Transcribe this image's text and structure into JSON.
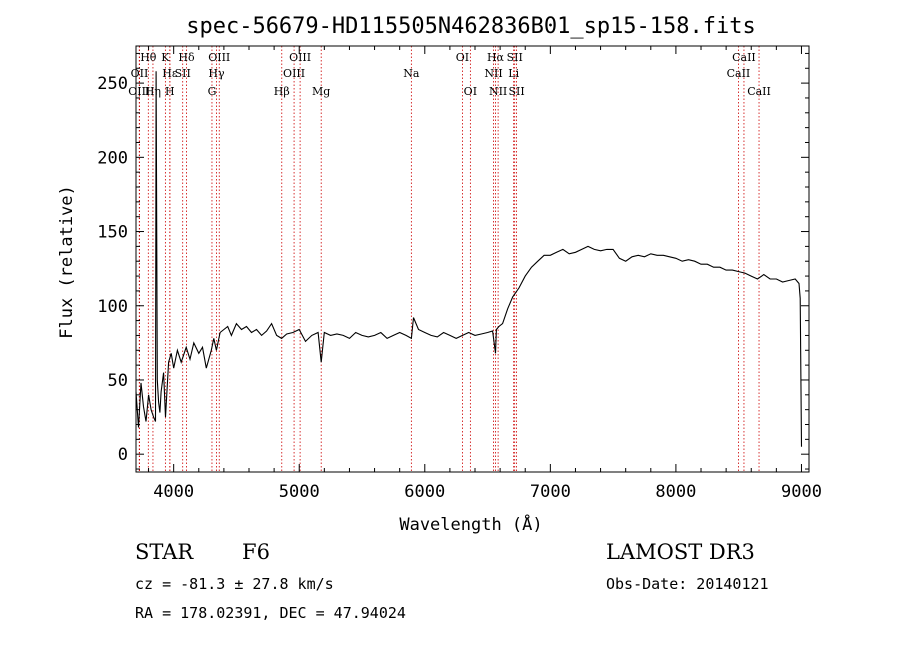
{
  "chart_data": {
    "type": "line",
    "title": "spec-56679-HD115505N462836B01_sp15-158.fits",
    "xlabel": "Wavelength (Å)",
    "ylabel": "Flux (relative)",
    "xlim": [
      3700,
      9060
    ],
    "ylim": [
      -12,
      275
    ],
    "xticks": [
      4000,
      5000,
      6000,
      7000,
      8000,
      9000
    ],
    "yticks": [
      0,
      50,
      100,
      150,
      200,
      250
    ],
    "series": [
      {
        "name": "spectrum",
        "x": [
          3700,
          3720,
          3740,
          3760,
          3780,
          3800,
          3820,
          3840,
          3855,
          3860,
          3870,
          3880,
          3890,
          3900,
          3920,
          3935,
          3960,
          3980,
          4000,
          4030,
          4060,
          4100,
          4130,
          4160,
          4200,
          4230,
          4260,
          4300,
          4320,
          4340,
          4370,
          4400,
          4430,
          4460,
          4500,
          4540,
          4580,
          4620,
          4660,
          4700,
          4740,
          4780,
          4820,
          4860,
          4900,
          4950,
          5000,
          5050,
          5100,
          5150,
          5175,
          5200,
          5250,
          5300,
          5350,
          5400,
          5450,
          5500,
          5550,
          5600,
          5650,
          5700,
          5750,
          5800,
          5850,
          5893,
          5910,
          5950,
          6000,
          6050,
          6100,
          6150,
          6200,
          6250,
          6300,
          6350,
          6400,
          6450,
          6500,
          6540,
          6563,
          6570,
          6590,
          6620,
          6660,
          6700,
          6750,
          6800,
          6850,
          6900,
          6950,
          7000,
          7050,
          7100,
          7150,
          7200,
          7250,
          7300,
          7350,
          7400,
          7450,
          7500,
          7550,
          7600,
          7650,
          7700,
          7750,
          7800,
          7850,
          7900,
          7950,
          8000,
          8050,
          8100,
          8150,
          8200,
          8250,
          8300,
          8350,
          8400,
          8450,
          8500,
          8550,
          8600,
          8650,
          8700,
          8750,
          8800,
          8850,
          8900,
          8950,
          8980,
          8990,
          9000
        ],
        "y": [
          42,
          18,
          48,
          32,
          22,
          40,
          30,
          25,
          22,
          258,
          50,
          35,
          28,
          42,
          55,
          25,
          62,
          68,
          58,
          70,
          62,
          72,
          64,
          75,
          68,
          72,
          58,
          70,
          78,
          70,
          82,
          84,
          86,
          80,
          88,
          84,
          86,
          82,
          84,
          80,
          83,
          88,
          80,
          78,
          81,
          82,
          84,
          76,
          80,
          82,
          62,
          82,
          80,
          81,
          80,
          78,
          82,
          80,
          79,
          80,
          82,
          78,
          80,
          82,
          80,
          78,
          92,
          84,
          82,
          80,
          79,
          82,
          80,
          78,
          80,
          82,
          80,
          81,
          82,
          83,
          68,
          84,
          86,
          88,
          98,
          106,
          112,
          120,
          126,
          130,
          134,
          134,
          136,
          138,
          135,
          136,
          138,
          140,
          138,
          137,
          138,
          138,
          132,
          130,
          133,
          134,
          133,
          135,
          134,
          134,
          133,
          132,
          130,
          131,
          130,
          128,
          128,
          126,
          126,
          124,
          124,
          123,
          122,
          120,
          118,
          121,
          118,
          118,
          116,
          117,
          118,
          115,
          105,
          5
        ]
      }
    ],
    "lines": [
      {
        "label": "Hθ",
        "wave": 3798,
        "row": 1
      },
      {
        "label": "OII",
        "wave": 3728,
        "row": 2
      },
      {
        "label": "OIII",
        "wave": 3726,
        "row": 3
      },
      {
        "label": "K",
        "wave": 3934,
        "row": 1
      },
      {
        "label": "Hε",
        "wave": 3970,
        "row": 2
      },
      {
        "label": "Hη",
        "wave": 3835,
        "row": 3
      },
      {
        "label": "H",
        "wave": 3969,
        "row": 3
      },
      {
        "label": "Hδ",
        "wave": 4102,
        "row": 1
      },
      {
        "label": "SII",
        "wave": 4072,
        "row": 2
      },
      {
        "label": "OIII",
        "wave": 4363,
        "row": 1
      },
      {
        "label": "Hγ",
        "wave": 4341,
        "row": 2
      },
      {
        "label": "G",
        "wave": 4305,
        "row": 3
      },
      {
        "label": "OIII",
        "wave": 5007,
        "row": 1
      },
      {
        "label": "OIII",
        "wave": 4959,
        "row": 2
      },
      {
        "label": "Hβ",
        "wave": 4861,
        "row": 3
      },
      {
        "label": "Mg",
        "wave": 5175,
        "row": 3
      },
      {
        "label": "Na",
        "wave": 5893,
        "row": 2
      },
      {
        "label": "OI",
        "wave": 6300,
        "row": 1
      },
      {
        "label": "OI",
        "wave": 6363,
        "row": 3
      },
      {
        "label": "Hα",
        "wave": 6563,
        "row": 1
      },
      {
        "label": "SII",
        "wave": 6716,
        "row": 1
      },
      {
        "label": "NII",
        "wave": 6548,
        "row": 2
      },
      {
        "label": "Li",
        "wave": 6708,
        "row": 2
      },
      {
        "label": "NII",
        "wave": 6584,
        "row": 3
      },
      {
        "label": "SII",
        "wave": 6731,
        "row": 3
      },
      {
        "label": "CaII",
        "wave": 8542,
        "row": 1
      },
      {
        "label": "CaII",
        "wave": 8498,
        "row": 2
      },
      {
        "label": "CaII",
        "wave": 8662,
        "row": 3
      }
    ]
  },
  "info": {
    "object_class": "STAR",
    "subclass": "F6",
    "survey": "LAMOST DR3",
    "cz": "cz = -81.3 ± 27.8 km/s",
    "obs_date": "Obs-Date: 20140121",
    "coords": "RA = 178.02391, DEC =  47.94024"
  },
  "colors": {
    "line_marker": "#cc0000",
    "spectrum": "#000000",
    "axis": "#000000"
  }
}
